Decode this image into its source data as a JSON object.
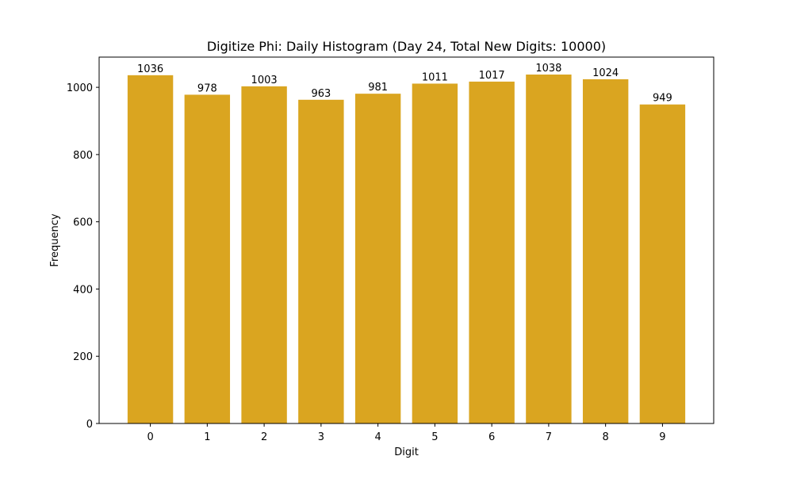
{
  "chart_data": {
    "type": "bar",
    "title": "Digitize Phi: Daily Histogram (Day 24, Total New Digits: 10000)",
    "xlabel": "Digit",
    "ylabel": "Frequency",
    "categories": [
      "0",
      "1",
      "2",
      "3",
      "4",
      "5",
      "6",
      "7",
      "8",
      "9"
    ],
    "values": [
      1036,
      978,
      1003,
      963,
      981,
      1011,
      1017,
      1038,
      1024,
      949
    ],
    "data_labels": [
      "1036",
      "978",
      "1003",
      "963",
      "981",
      "1011",
      "1017",
      "1038",
      "1024",
      "949"
    ],
    "yticks": [
      0,
      200,
      400,
      600,
      800,
      1000
    ],
    "ytick_labels": [
      "0",
      "200",
      "400",
      "600",
      "800",
      "1000"
    ],
    "ylim": [
      0,
      1089.9
    ],
    "xlim": [
      -0.9,
      9.9
    ],
    "bar_width": 0.8,
    "bar_color": "#DAA520",
    "grid": false,
    "legend": "none"
  }
}
